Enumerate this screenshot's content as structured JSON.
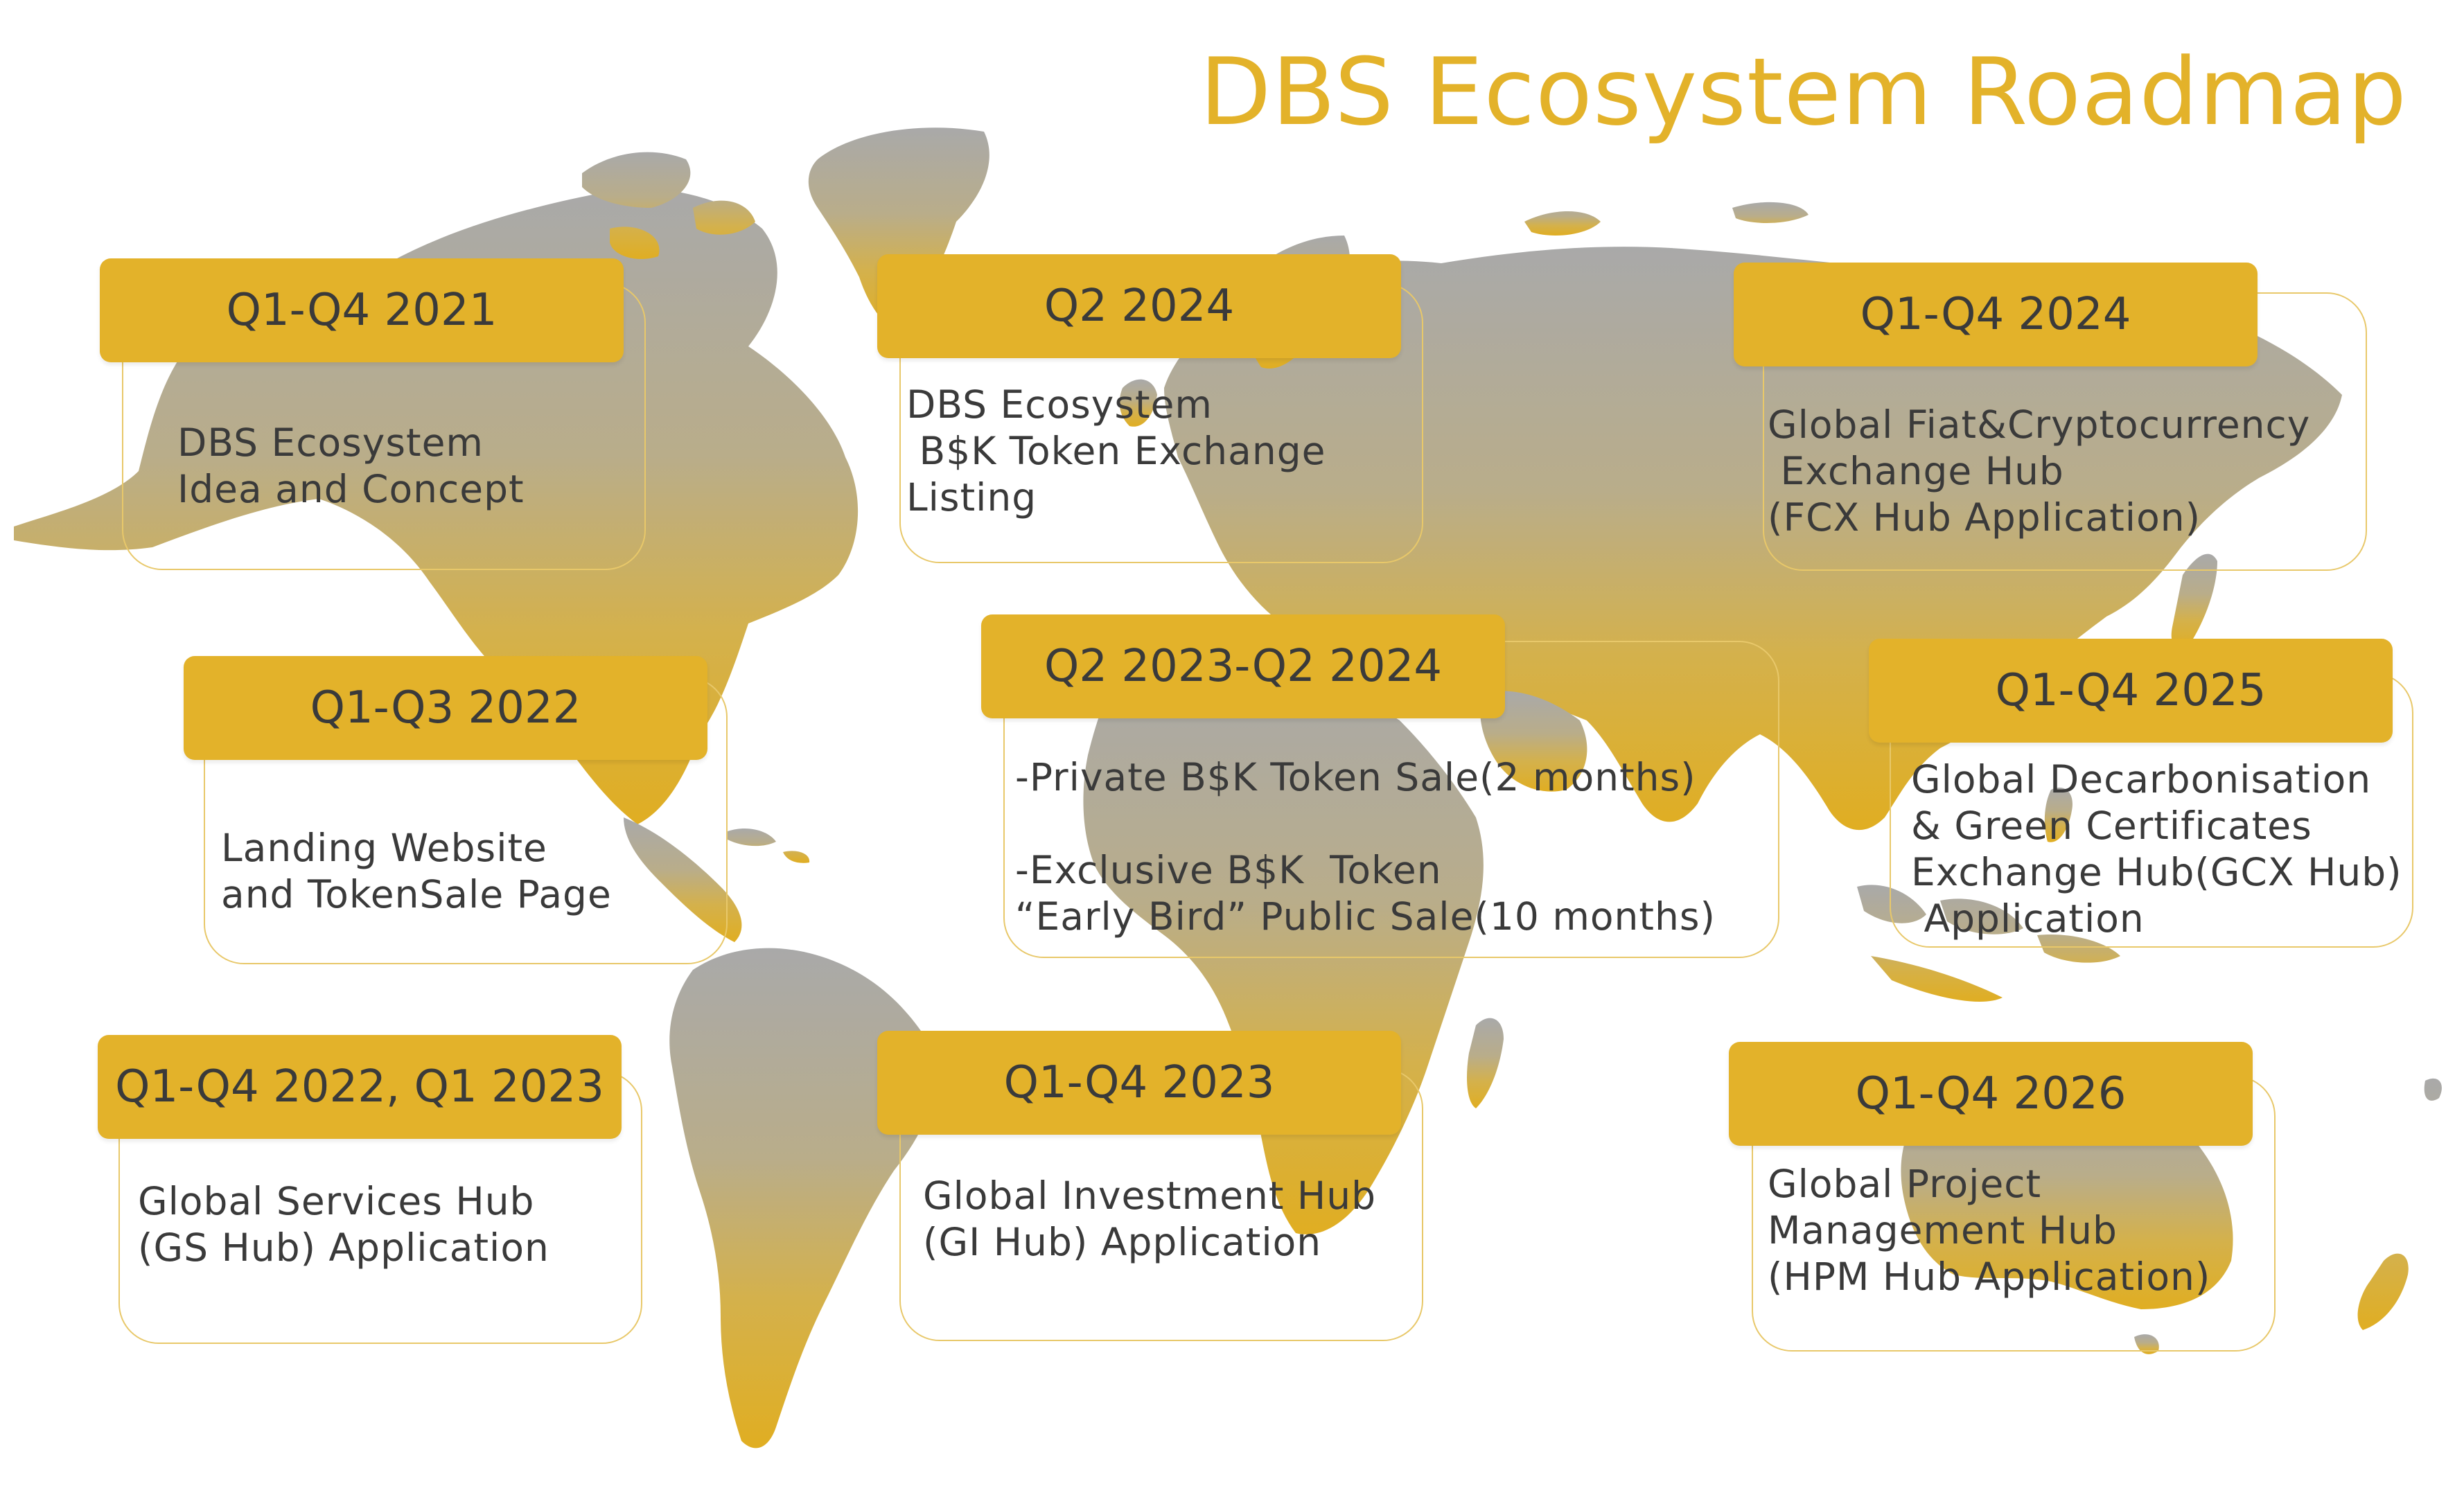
{
  "page": {
    "title": "DBS Ecosystem Roadmap"
  },
  "colors": {
    "accent": "#e3b22a",
    "card_border": "#e8c86a",
    "text": "#3a3a3a",
    "map_top": "#a9a9a9",
    "map_bottom": "#e0ae22"
  },
  "background": {
    "image": "world-map"
  },
  "milestones": [
    {
      "period": "Q1-Q4 2021",
      "text": "DBS Ecosystem\nIdea and Concept"
    },
    {
      "period": "Q2 2024",
      "text": "DBS Ecosystem\n B$K Token Exchange\nListing"
    },
    {
      "period": "Q1-Q4 2024",
      "text": "Global Fiat&Cryptocurrency\n Exchange Hub\n(FCX Hub Application)"
    },
    {
      "period": "Q1-Q3 2022",
      "text": "Landing Website\nand TokenSale Page"
    },
    {
      "period": "Q2 2023-Q2 2024",
      "text": "-Private B$K Token Sale(2 months)\n\n-Exclusive B$K  Token\n“Early Bird” Public Sale(10 months)"
    },
    {
      "period": "Q1-Q4 2025",
      "text": "Global Decarbonisation\n& Green Certificates\nExchange Hub(GCX Hub)\n Application"
    },
    {
      "period": "Q1-Q4 2022, Q1 2023",
      "text": "Global Services Hub\n(GS Hub) Application"
    },
    {
      "period": "Q1-Q4 2023",
      "text": "Global Investment Hub\n(GI Hub) Application"
    },
    {
      "period": "Q1-Q4 2026",
      "text": "Global Project\nManagement Hub\n(HPM Hub Application)"
    }
  ]
}
